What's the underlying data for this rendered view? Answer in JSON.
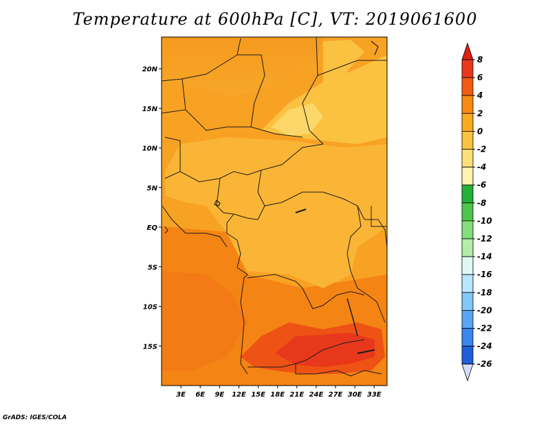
{
  "chart_data": {
    "type": "heatmap",
    "title": "Temperature at 600hPa [C], VT: 2019061600",
    "variable": "Temperature",
    "level": "600hPa",
    "units": "C",
    "valid_time": "2019061600",
    "x_ticks": [
      "3E",
      "6E",
      "9E",
      "12E",
      "15E",
      "18E",
      "21E",
      "24E",
      "27E",
      "30E",
      "33E"
    ],
    "y_ticks": [
      "20N",
      "15N",
      "10N",
      "5N",
      "EQ",
      "5S",
      "10S",
      "15S"
    ],
    "lon_range": [
      0,
      35
    ],
    "lat_range": [
      -20,
      24
    ],
    "x_tick_values": [
      3,
      6,
      9,
      12,
      15,
      18,
      21,
      24,
      27,
      30,
      33
    ],
    "y_tick_values": [
      20,
      15,
      10,
      5,
      0,
      -5,
      -10,
      -15
    ],
    "colorbar": {
      "labels": [
        "8",
        "6",
        "4",
        "2",
        "0",
        "-2",
        "-4",
        "-6",
        "-8",
        "-10",
        "-12",
        "-14",
        "-16",
        "-18",
        "-20",
        "-22",
        "-24",
        "-26"
      ],
      "values": [
        8,
        6,
        4,
        2,
        0,
        -2,
        -4,
        -6,
        -8,
        -10,
        -12,
        -14,
        -16,
        -18,
        -20,
        -22,
        -24,
        -26
      ],
      "colors": [
        "#e8381c",
        "#f25c12",
        "#f98a12",
        "#fbab20",
        "#fbc440",
        "#fde07a",
        "#fff4b0",
        "#23b03a",
        "#4cc64c",
        "#84de7e",
        "#b4ecaa",
        "#e0f8f4",
        "#b8e6fc",
        "#82c8f8",
        "#5aa6f4",
        "#3a86ec",
        "#1f5ed8",
        "#173cbc",
        "#0c1c88"
      ],
      "top_triangle_color": "#dc2010",
      "bottom_triangle_color": "#d6dcf8"
    },
    "field_regions": [
      {
        "name": "north-orange",
        "value": 3
      },
      {
        "name": "sahel-light",
        "value": 1
      },
      {
        "name": "central-light-orange",
        "value": 1
      },
      {
        "name": "west-coast-orange",
        "value": 3
      },
      {
        "name": "south-orange",
        "value": 4
      },
      {
        "name": "southern-red",
        "value": 6
      }
    ]
  },
  "footer": "GrADS: IGES/COLA"
}
